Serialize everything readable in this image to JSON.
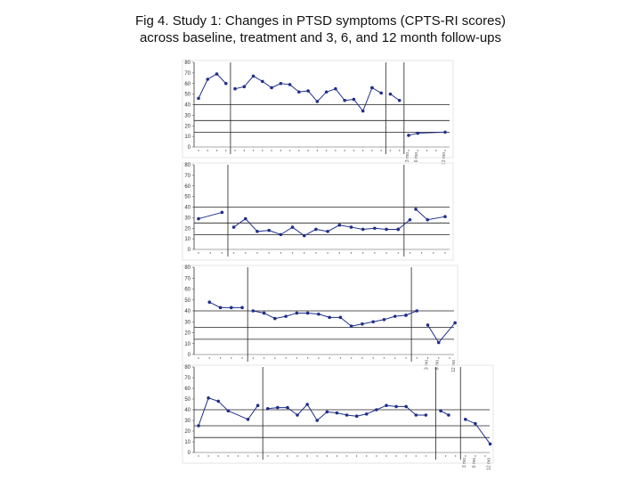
{
  "figure": {
    "title_line_1": "Fig 4. Study 1: Changes in PTSD symptoms (CPTS-RI scores)",
    "title_line_2": "across   baseline, treatment and 3, 6, and 12 month follow-ups"
  },
  "chart_data": [
    {
      "type": "line",
      "ylim": [
        0,
        80
      ],
      "yticks": [
        0,
        10,
        20,
        30,
        40,
        50,
        60,
        70,
        80
      ],
      "reference_lines": [
        40,
        25,
        14
      ],
      "n_points": 28,
      "phase_breaks": [
        3.5,
        20.5,
        22.5
      ],
      "segments": [
        {
          "x": [
            0,
            1,
            2,
            3
          ],
          "y": [
            46,
            64,
            69,
            60
          ]
        },
        {
          "x": [
            4,
            5,
            6,
            7,
            8,
            9,
            10,
            11,
            12,
            13,
            14,
            15,
            16,
            17,
            18,
            19
          ],
          "y": [
            55,
            57,
            67,
            62,
            56,
            60,
            59,
            52,
            53,
            43,
            52,
            55,
            44,
            45,
            34,
            56
          ]
        },
        {
          "x": [
            19,
            20
          ],
          "y": [
            56,
            51
          ]
        },
        {
          "x": [
            21,
            22
          ],
          "y": [
            50,
            44
          ]
        },
        {
          "x": [
            23,
            24,
            27
          ],
          "y": [
            11,
            13,
            14
          ]
        }
      ],
      "xticks_rotated": [
        "3 mo",
        "6 mo",
        "12 mo"
      ],
      "xticks_rotated_pos": [
        23,
        24,
        27
      ]
    },
    {
      "type": "line",
      "ylim": [
        0,
        80
      ],
      "yticks": [
        0,
        10,
        20,
        30,
        40,
        50,
        60,
        70,
        80
      ],
      "reference_lines": [
        40,
        25,
        14
      ],
      "n_points": 22,
      "phase_breaks": [
        2.5,
        17.5
      ],
      "segments": [
        {
          "x": [
            0,
            2
          ],
          "y": [
            29,
            35
          ]
        },
        {
          "x": [
            3,
            4,
            5,
            6,
            7,
            8,
            9,
            10,
            11,
            12,
            13,
            14,
            15,
            16,
            17
          ],
          "y": [
            21,
            29,
            17,
            18,
            14,
            21,
            13,
            19,
            17,
            23,
            21,
            19,
            20,
            19,
            19
          ]
        },
        {
          "x": [
            17,
            18
          ],
          "y": [
            19,
            28
          ]
        },
        {
          "x": [
            18.5,
            19.5,
            21
          ],
          "y": [
            38,
            28,
            31
          ]
        }
      ],
      "xticks_rotated": [],
      "xticks_rotated_pos": []
    },
    {
      "type": "line",
      "ylim": [
        0,
        80
      ],
      "yticks": [
        0,
        10,
        20,
        30,
        40,
        50,
        60,
        70,
        80
      ],
      "reference_lines": [
        40,
        25,
        14
      ],
      "n_points": 24,
      "phase_breaks": [
        4.5,
        19.5
      ],
      "segments": [
        {
          "x": [
            1,
            2,
            3,
            4
          ],
          "y": [
            48,
            43,
            43,
            43
          ]
        },
        {
          "x": [
            5,
            6,
            7,
            8,
            9,
            10,
            11,
            12,
            13,
            14,
            15,
            16,
            17,
            18,
            19
          ],
          "y": [
            40,
            38,
            33,
            35,
            38,
            38,
            37,
            34,
            34,
            26,
            28,
            30,
            32,
            35,
            36
          ]
        },
        {
          "x": [
            19,
            20
          ],
          "y": [
            36,
            40
          ]
        },
        {
          "x": [
            21,
            22,
            23.5
          ],
          "y": [
            27,
            11,
            29
          ]
        }
      ],
      "xticks_rotated": [
        "3 mo",
        "6 mo",
        "12 mo"
      ],
      "xticks_rotated_pos": [
        21,
        22,
        23.5
      ]
    },
    {
      "type": "line",
      "ylim": [
        0,
        80
      ],
      "yticks": [
        0,
        10,
        20,
        30,
        40,
        50,
        60,
        70,
        80
      ],
      "reference_lines": [
        40,
        25,
        14
      ],
      "n_points": 30,
      "phase_breaks": [
        6.5,
        24,
        26.5
      ],
      "segments": [
        {
          "x": [
            0,
            1,
            2,
            3,
            5,
            6
          ],
          "y": [
            25,
            51,
            48,
            39,
            31,
            44
          ]
        },
        {
          "x": [
            7,
            8,
            9,
            10,
            11,
            12,
            13,
            14,
            15,
            16,
            17,
            18,
            19,
            20,
            21,
            22,
            23
          ],
          "y": [
            41,
            42,
            42,
            35,
            45,
            30,
            38,
            37,
            35,
            34,
            36,
            40,
            44,
            43,
            43,
            35,
            35
          ]
        },
        {
          "x": [
            24.5,
            25.3
          ],
          "y": [
            39,
            35
          ]
        },
        {
          "x": [
            27,
            28,
            29.5
          ],
          "y": [
            31,
            27,
            8
          ]
        }
      ],
      "xticks_rotated": [
        "3 mo",
        "6 mo",
        "12 mo"
      ],
      "xticks_rotated_pos": [
        27,
        28,
        29.5
      ]
    }
  ]
}
